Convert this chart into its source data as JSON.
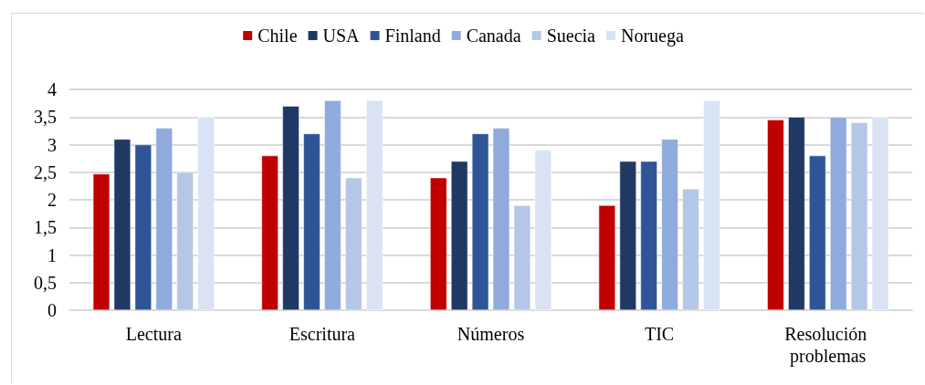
{
  "chart_data": {
    "type": "bar",
    "categories": [
      "Lectura",
      "Escritura",
      "Números",
      "TIC",
      "Resolución problemas"
    ],
    "series": [
      {
        "name": "Chile",
        "color": "#c00000",
        "values": [
          2.47,
          2.8,
          2.4,
          1.9,
          3.45
        ]
      },
      {
        "name": "USA",
        "color": "#203864",
        "values": [
          3.1,
          3.7,
          2.7,
          2.7,
          3.5
        ]
      },
      {
        "name": "Finland",
        "color": "#2f5597",
        "values": [
          3.0,
          3.2,
          3.2,
          2.7,
          2.8
        ]
      },
      {
        "name": "Canada",
        "color": "#8faadc",
        "values": [
          3.3,
          3.8,
          3.3,
          3.1,
          3.5
        ]
      },
      {
        "name": "Suecia",
        "color": "#b4c7e7",
        "values": [
          2.5,
          2.4,
          1.9,
          2.2,
          3.4
        ]
      },
      {
        "name": "Noruega",
        "color": "#dae3f3",
        "values": [
          3.5,
          3.8,
          2.9,
          3.8,
          3.5
        ]
      }
    ],
    "ylim": [
      0,
      4
    ],
    "yticks": [
      0,
      {
        "value": 0.5,
        "label": "0,5"
      },
      1,
      {
        "value": 1.5,
        "label": "1,5"
      },
      2,
      {
        "value": 2.5,
        "label": "2,5"
      },
      3,
      {
        "value": 3.5,
        "label": "3,5"
      },
      4
    ],
    "grid": "y",
    "legend": "top"
  }
}
